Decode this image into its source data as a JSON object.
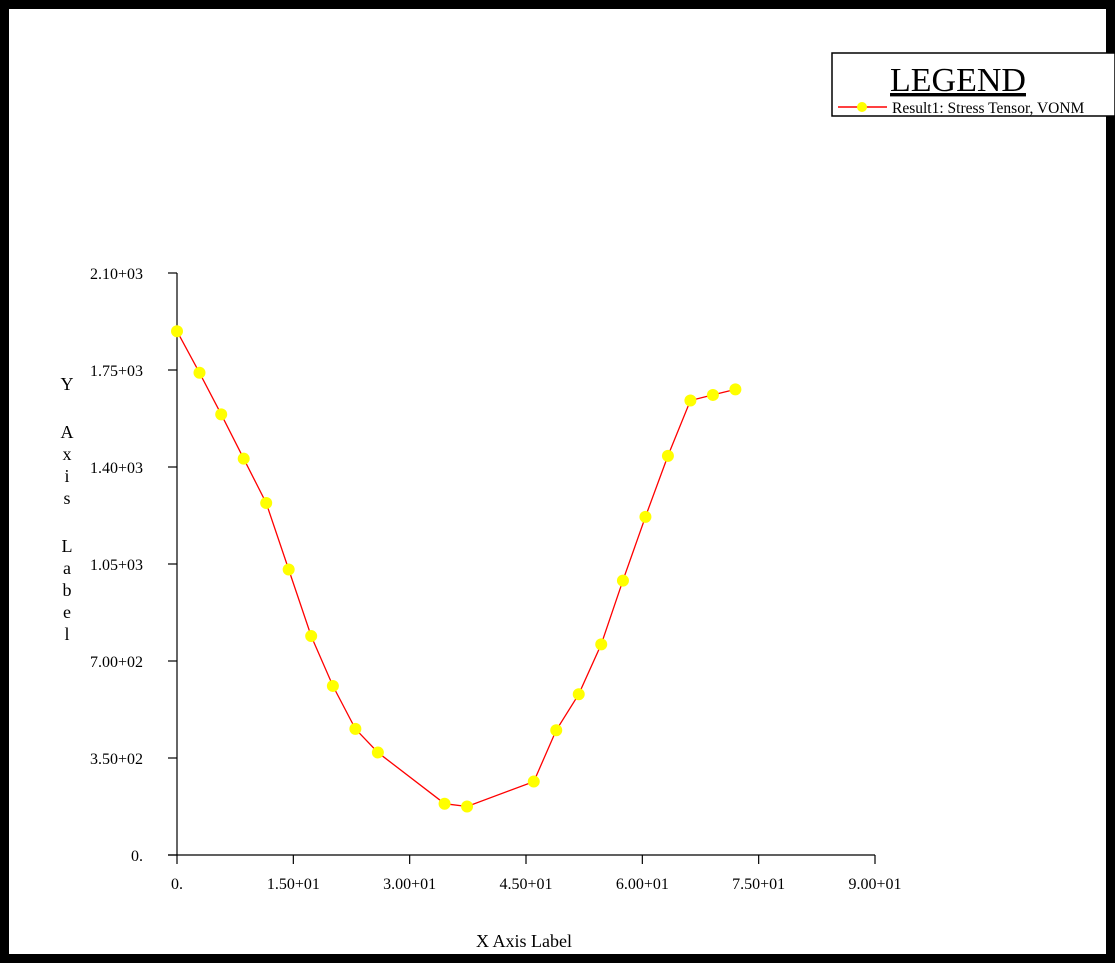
{
  "chart_data": {
    "type": "line",
    "title": "",
    "xlabel": "X Axis Label",
    "ylabel": "Y Axis Label",
    "xlim": [
      0,
      90
    ],
    "ylim": [
      0,
      2100
    ],
    "x_ticks": [
      0,
      15,
      30,
      45,
      60,
      75,
      90
    ],
    "x_tick_labels": [
      "0.",
      "1.50+01",
      "3.00+01",
      "4.50+01",
      "6.00+01",
      "7.50+01",
      "9.00+01"
    ],
    "y_ticks": [
      0,
      350,
      700,
      1050,
      1400,
      1750,
      2100
    ],
    "y_tick_labels": [
      "0.",
      "3.50+02",
      "7.00+02",
      "1.05+03",
      "1.40+03",
      "1.75+03",
      "2.10+03"
    ],
    "grid": false,
    "legend": {
      "title": "LEGEND",
      "placement": "top-right",
      "entries": [
        "Result1: Stress Tensor, VONM"
      ]
    },
    "series": [
      {
        "name": "Result1: Stress Tensor, VONM",
        "line_color": "#ff0000",
        "marker_color": "#ffff00",
        "x": [
          0,
          2.9,
          5.7,
          8.6,
          11.5,
          14.4,
          17.3,
          20.1,
          23.0,
          25.9,
          34.5,
          37.4,
          46.0,
          48.9,
          51.8,
          54.7,
          57.5,
          60.4,
          63.3,
          66.2,
          69.1,
          72.0
        ],
        "y": [
          1890,
          1740,
          1590,
          1430,
          1270,
          1030,
          790,
          610,
          455,
          370,
          185,
          175,
          265,
          450,
          580,
          760,
          990,
          1220,
          1440,
          1640,
          1660,
          1680
        ]
      }
    ]
  }
}
